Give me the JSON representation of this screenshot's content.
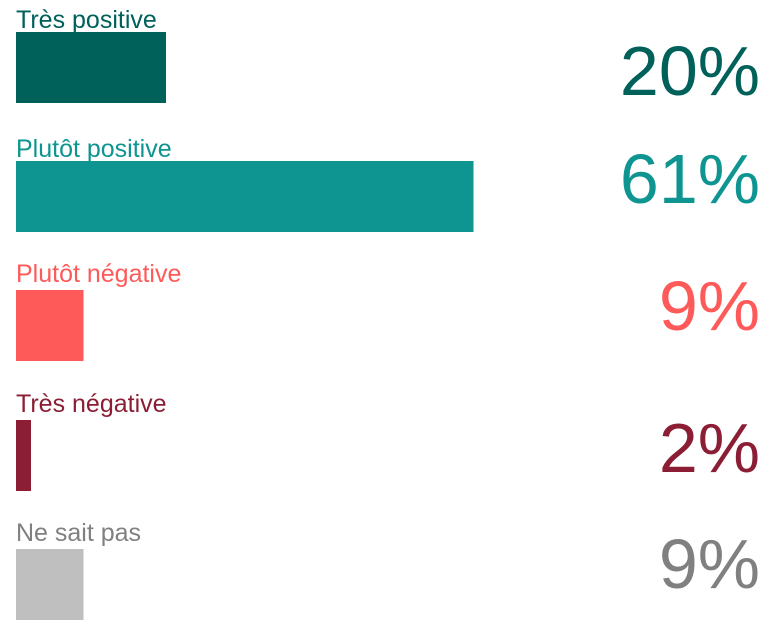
{
  "chart_data": {
    "type": "bar",
    "categories": [
      "Très positive",
      "Plutôt positive",
      "Plutôt négative",
      "Très négative",
      "Ne sait pas"
    ],
    "values": [
      20,
      61,
      9,
      2,
      9
    ],
    "value_labels": [
      "20%",
      "61%",
      "9%",
      "2%",
      "9%"
    ],
    "colors": [
      "#00605a",
      "#0e9591",
      "#ff5a5a",
      "#8b1e34",
      "#bfbfbf"
    ],
    "text_colors": [
      "#00605a",
      "#0e9591",
      "#ff5a5a",
      "#8b1e34",
      "#808080"
    ]
  }
}
